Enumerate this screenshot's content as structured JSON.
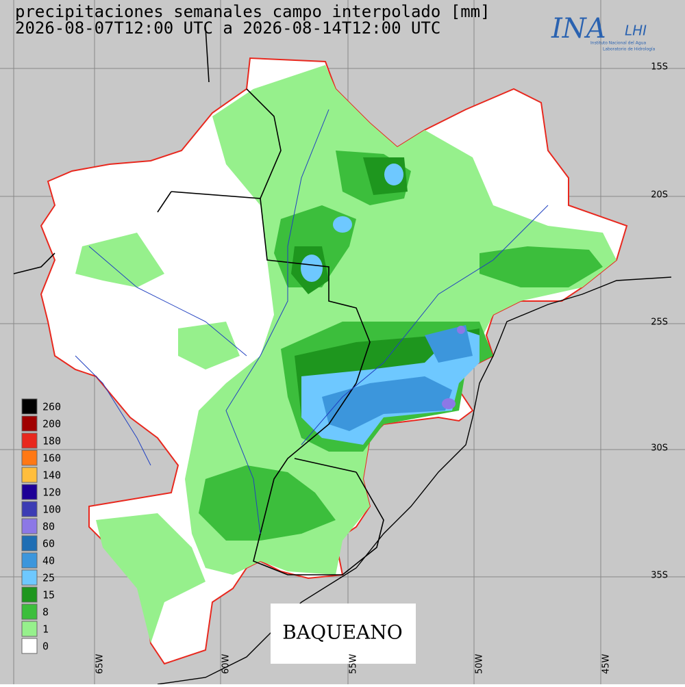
{
  "header": {
    "title": "precipitaciones semanales campo interpolado [mm]",
    "period": "2026-08-07T12:00 UTC a 2026-08-14T12:00 UTC"
  },
  "logo": {
    "name": "INA",
    "lab": "LHI",
    "institute": "Instituto Nacional del Agua",
    "laboratory": "Laboratorio de Hidrología"
  },
  "latitudes": [
    "15S",
    "20S",
    "25S",
    "30S",
    "35S"
  ],
  "longitudes": [
    "65W",
    "60W",
    "55W",
    "50W",
    "45W"
  ],
  "legend": [
    {
      "value": 260,
      "color": "#000000"
    },
    {
      "value": 200,
      "color": "#a00000"
    },
    {
      "value": 180,
      "color": "#e8281e"
    },
    {
      "value": 160,
      "color": "#ff7814"
    },
    {
      "value": 140,
      "color": "#ffbe3c"
    },
    {
      "value": 120,
      "color": "#1e0096"
    },
    {
      "value": 100,
      "color": "#3c3cb4"
    },
    {
      "value": 80,
      "color": "#8c78e6"
    },
    {
      "value": 60,
      "color": "#1e6eb4"
    },
    {
      "value": 40,
      "color": "#3c96dc"
    },
    {
      "value": 25,
      "color": "#6ec8ff"
    },
    {
      "value": 15,
      "color": "#1e961e"
    },
    {
      "value": 8,
      "color": "#3cbe3c"
    },
    {
      "value": 1,
      "color": "#96f08c"
    },
    {
      "value": 0,
      "color": "#ffffff"
    }
  ],
  "watermark": "BAQUEANO"
}
